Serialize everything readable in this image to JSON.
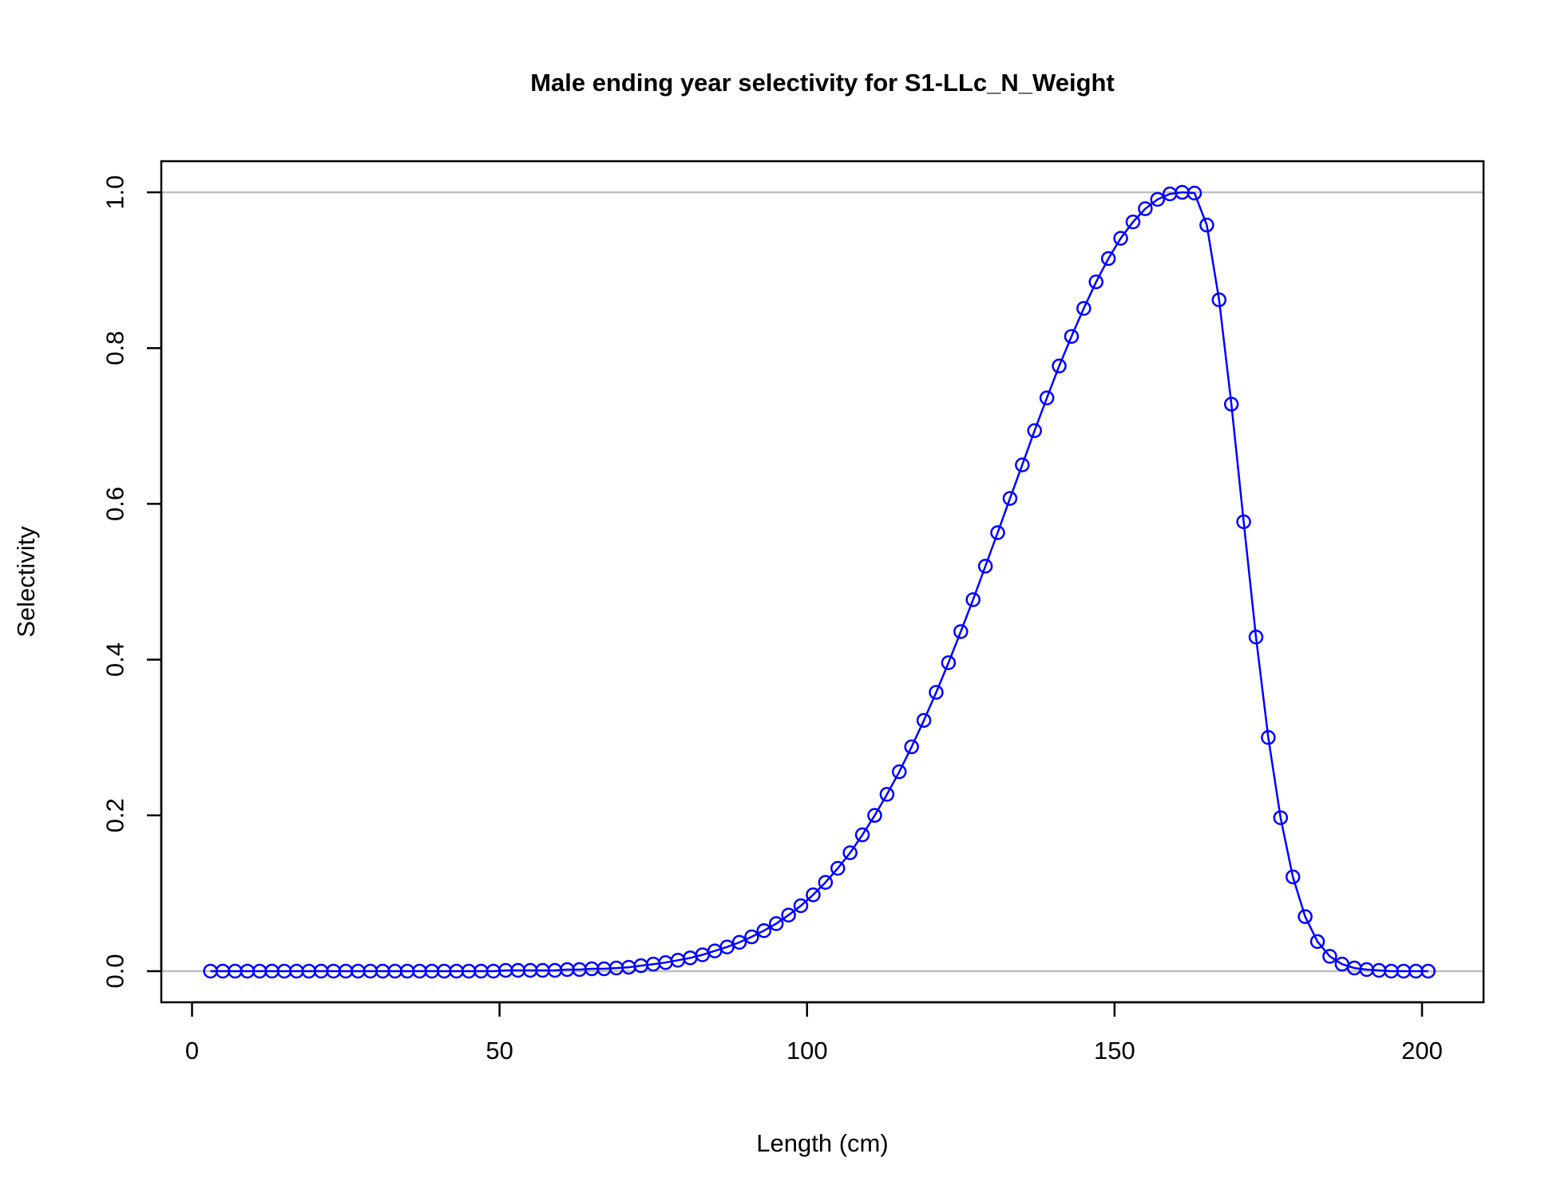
{
  "chart_data": {
    "type": "line",
    "title": "Male ending year selectivity for S1-LLc_N_Weight",
    "xlabel": "Length (cm)",
    "ylabel": "Selectivity",
    "xlim": [
      -5,
      210
    ],
    "ylim": [
      -0.04,
      1.04
    ],
    "xticks": [
      0,
      50,
      100,
      150,
      200
    ],
    "yticks": [
      0.0,
      0.2,
      0.4,
      0.6,
      0.8,
      1.0
    ],
    "xtick_labels": [
      "0",
      "50",
      "100",
      "150",
      "200"
    ],
    "ytick_labels": [
      "0.0",
      "0.2",
      "0.4",
      "0.6",
      "0.8",
      "1.0"
    ],
    "reference_lines_y": [
      0,
      1
    ],
    "grid": false,
    "colors": {
      "series": "#0000ff",
      "reference": "#bebebe",
      "axis": "#000000"
    },
    "series": [
      {
        "marker": "open-circle",
        "x": [
          3,
          5,
          7,
          9,
          11,
          13,
          15,
          17,
          19,
          21,
          23,
          25,
          27,
          29,
          31,
          33,
          35,
          37,
          39,
          41,
          43,
          45,
          47,
          49,
          51,
          53,
          55,
          57,
          59,
          61,
          63,
          65,
          67,
          69,
          71,
          73,
          75,
          77,
          79,
          81,
          83,
          85,
          87,
          89,
          91,
          93,
          95,
          97,
          99,
          101,
          103,
          105,
          107,
          109,
          111,
          113,
          115,
          117,
          119,
          121,
          123,
          125,
          127,
          129,
          131,
          133,
          135,
          137,
          139,
          141,
          143,
          145,
          147,
          149,
          151,
          153,
          155,
          157,
          159,
          161,
          163,
          165,
          167,
          169,
          171,
          173,
          175,
          177,
          179,
          181,
          183,
          185,
          187,
          189,
          191,
          193,
          195,
          197,
          199,
          201
        ],
        "y": [
          0,
          0,
          0,
          0,
          0,
          0,
          0,
          0,
          0,
          0,
          0,
          0,
          0,
          0,
          0,
          0,
          0,
          0,
          0,
          0,
          0,
          0,
          0,
          0,
          0.001,
          0.001,
          0.001,
          0.001,
          0.001,
          0.002,
          0.002,
          0.003,
          0.003,
          0.004,
          0.005,
          0.007,
          0.009,
          0.011,
          0.014,
          0.017,
          0.021,
          0.026,
          0.031,
          0.037,
          0.044,
          0.052,
          0.061,
          0.072,
          0.084,
          0.098,
          0.114,
          0.132,
          0.152,
          0.175,
          0.2,
          0.227,
          0.256,
          0.288,
          0.322,
          0.358,
          0.396,
          0.436,
          0.477,
          0.52,
          0.563,
          0.607,
          0.65,
          0.694,
          0.736,
          0.777,
          0.815,
          0.851,
          0.885,
          0.915,
          0.941,
          0.962,
          0.979,
          0.991,
          0.998,
          1.0,
          0.999,
          0.958,
          0.862,
          0.728,
          0.577,
          0.429,
          0.3,
          0.197,
          0.121,
          0.07,
          0.038,
          0.019,
          0.009,
          0.004,
          0.002,
          0.001,
          0,
          0,
          0,
          0
        ]
      }
    ]
  }
}
